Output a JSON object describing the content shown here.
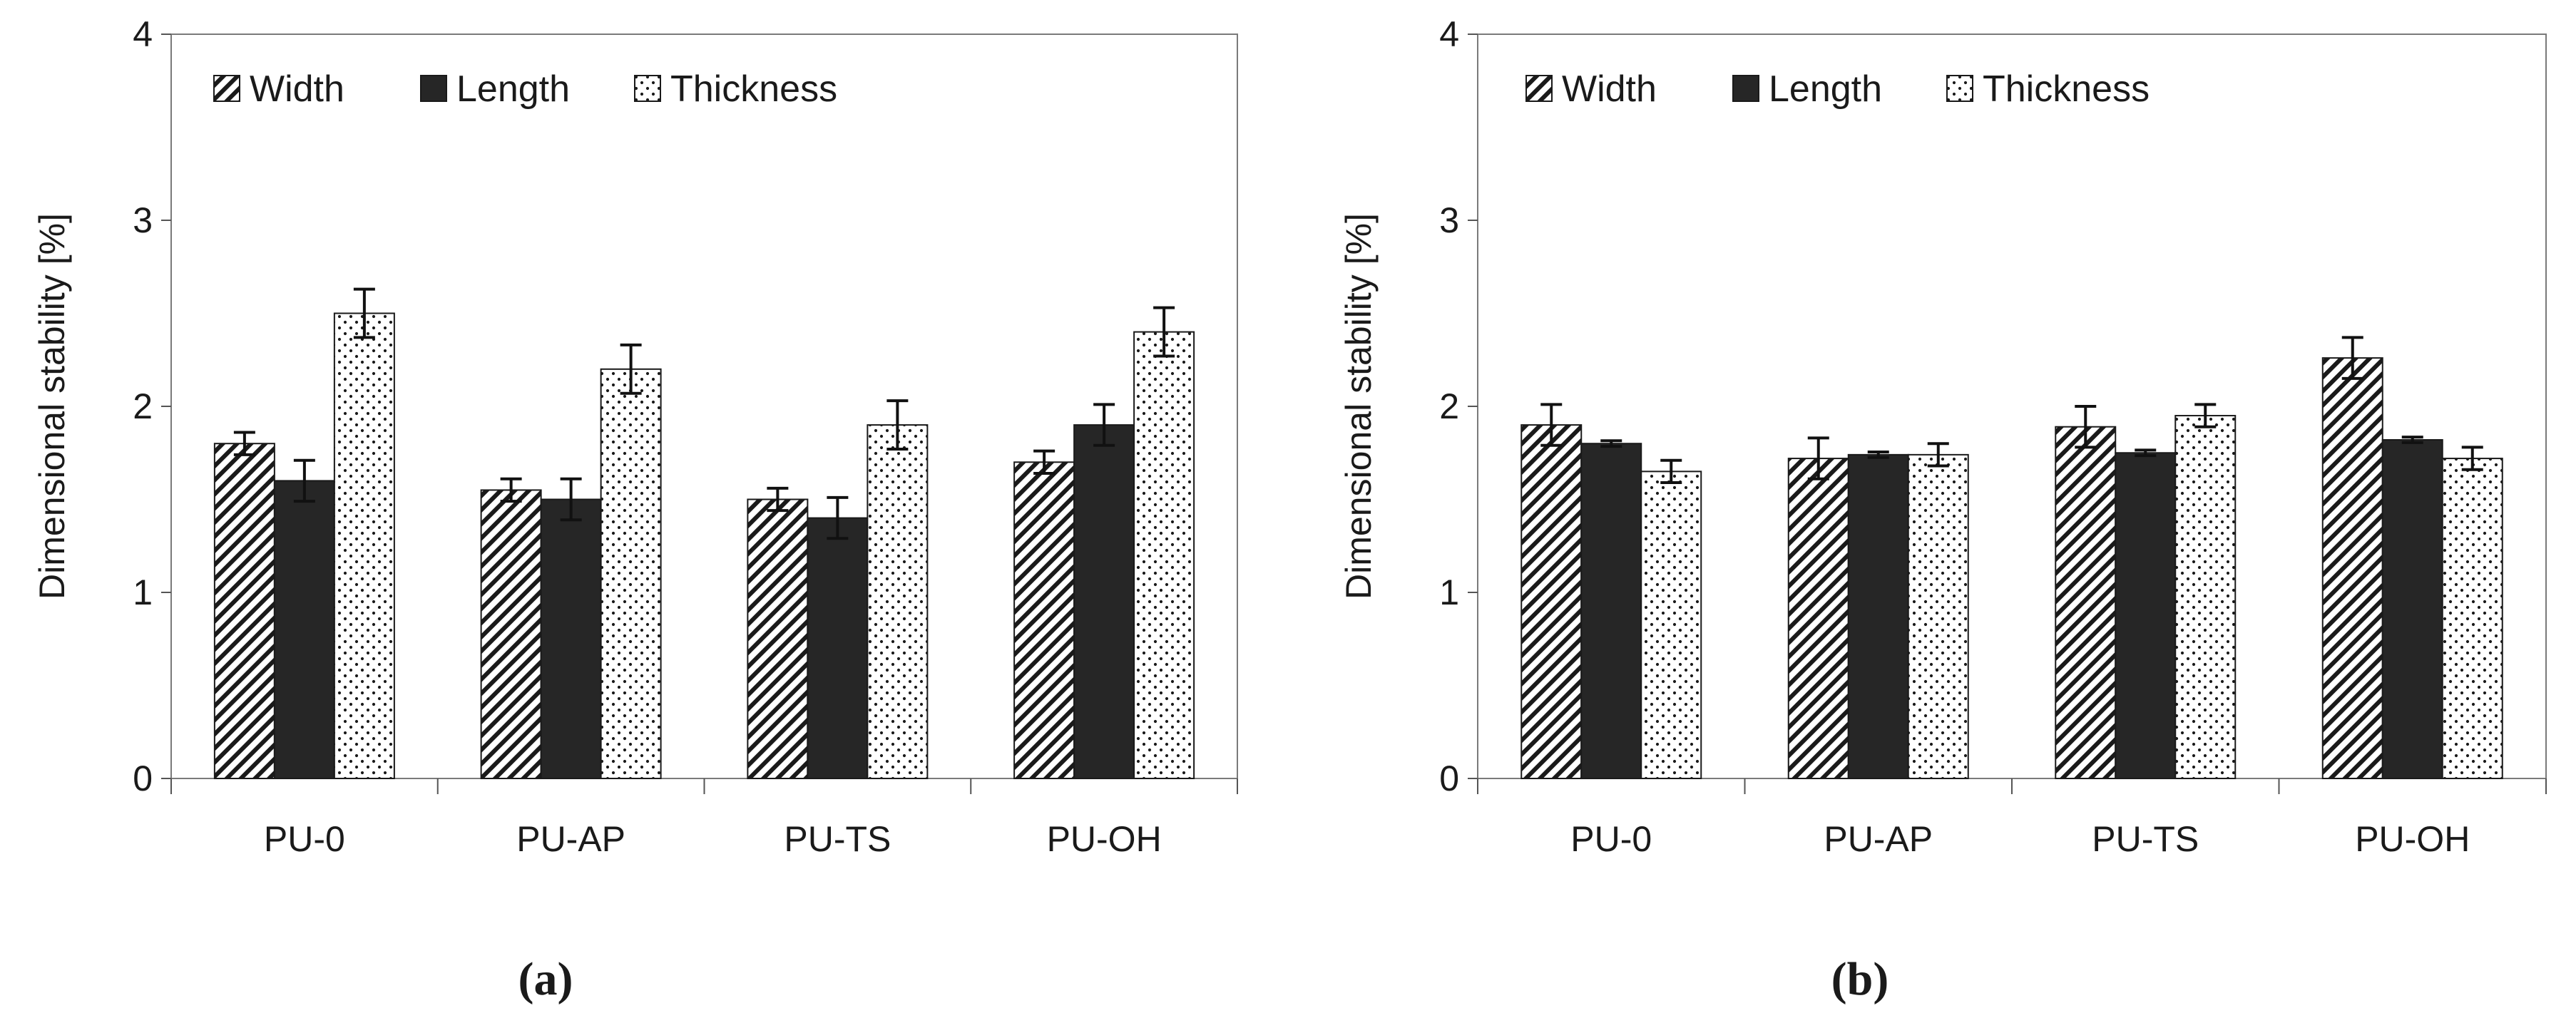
{
  "chart_data": [
    {
      "type": "bar",
      "panel_label": "(a)",
      "categories": [
        "PU-0",
        "PU-AP",
        "PU-TS",
        "PU-OH"
      ],
      "ylabel": "Dimensional stability [%]",
      "xlabel": "",
      "ylim": [
        0,
        4
      ],
      "yticks": [
        0,
        1,
        2,
        3,
        4
      ],
      "legend_position": "top-left",
      "series": [
        {
          "name": "Width",
          "pattern": "diagonal",
          "values": [
            1.8,
            1.55,
            1.5,
            1.7
          ],
          "errors": [
            0.06,
            0.06,
            0.06,
            0.06
          ]
        },
        {
          "name": "Length",
          "pattern": "solid",
          "values": [
            1.6,
            1.5,
            1.4,
            1.9
          ],
          "errors": [
            0.11,
            0.11,
            0.11,
            0.11
          ]
        },
        {
          "name": "Thickness",
          "pattern": "dots",
          "values": [
            2.5,
            2.2,
            1.9,
            2.4
          ],
          "errors": [
            0.13,
            0.13,
            0.13,
            0.13
          ]
        }
      ]
    },
    {
      "type": "bar",
      "panel_label": "(b)",
      "categories": [
        "PU-0",
        "PU-AP",
        "PU-TS",
        "PU-OH"
      ],
      "ylabel": "Dimensional stability [%]",
      "xlabel": "",
      "ylim": [
        0,
        4
      ],
      "yticks": [
        0,
        1,
        2,
        3,
        4
      ],
      "legend_position": "top-left",
      "series": [
        {
          "name": "Width",
          "pattern": "diagonal",
          "values": [
            1.9,
            1.72,
            1.89,
            2.26
          ],
          "errors": [
            0.11,
            0.11,
            0.11,
            0.11
          ]
        },
        {
          "name": "Length",
          "pattern": "solid",
          "values": [
            1.8,
            1.74,
            1.75,
            1.82
          ],
          "errors": [
            0.015,
            0.015,
            0.015,
            0.015
          ]
        },
        {
          "name": "Thickness",
          "pattern": "dots",
          "values": [
            1.65,
            1.74,
            1.95,
            1.72
          ],
          "errors": [
            0.06,
            0.06,
            0.06,
            0.06
          ]
        }
      ]
    }
  ]
}
